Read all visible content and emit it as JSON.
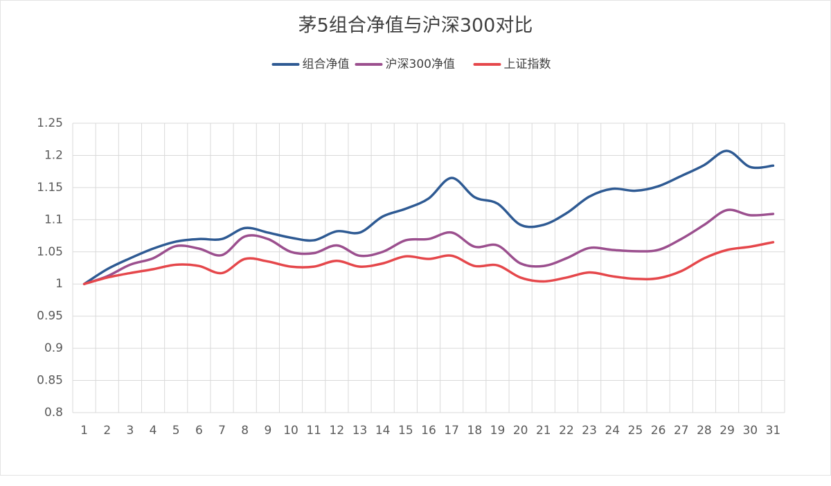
{
  "chart_data": {
    "type": "line",
    "title": "茅5组合净值与沪深300对比",
    "categories": [
      "1",
      "2",
      "3",
      "4",
      "5",
      "6",
      "7",
      "8",
      "9",
      "10",
      "11",
      "12",
      "13",
      "14",
      "15",
      "16",
      "17",
      "18",
      "19",
      "20",
      "21",
      "22",
      "23",
      "24",
      "25",
      "26",
      "27",
      "28",
      "29",
      "30",
      "31"
    ],
    "series": [
      {
        "name": "组合净值",
        "color": "#2e5a93",
        "values": [
          1.0,
          1.023,
          1.04,
          1.055,
          1.066,
          1.07,
          1.07,
          1.087,
          1.08,
          1.072,
          1.068,
          1.082,
          1.08,
          1.105,
          1.117,
          1.133,
          1.165,
          1.135,
          1.125,
          1.092,
          1.092,
          1.11,
          1.136,
          1.148,
          1.145,
          1.152,
          1.168,
          1.185,
          1.207,
          1.182,
          1.184
        ]
      },
      {
        "name": "沪深300净值",
        "color": "#9b4f8e",
        "values": [
          1.0,
          1.012,
          1.03,
          1.04,
          1.059,
          1.055,
          1.045,
          1.074,
          1.07,
          1.05,
          1.048,
          1.06,
          1.044,
          1.05,
          1.068,
          1.07,
          1.08,
          1.058,
          1.06,
          1.032,
          1.028,
          1.04,
          1.056,
          1.053,
          1.051,
          1.053,
          1.07,
          1.092,
          1.115,
          1.107,
          1.109
        ]
      },
      {
        "name": "上证指数",
        "color": "#e5474b",
        "values": [
          1.0,
          1.01,
          1.017,
          1.023,
          1.03,
          1.028,
          1.017,
          1.039,
          1.035,
          1.027,
          1.027,
          1.036,
          1.027,
          1.032,
          1.043,
          1.039,
          1.044,
          1.028,
          1.029,
          1.01,
          1.004,
          1.01,
          1.018,
          1.012,
          1.008,
          1.009,
          1.02,
          1.04,
          1.053,
          1.058,
          1.065
        ]
      }
    ],
    "ylim": [
      0.8,
      1.25
    ],
    "yticks": [
      0.8,
      0.85,
      0.9,
      0.95,
      1,
      1.05,
      1.1,
      1.15,
      1.2,
      1.25
    ],
    "grid": true,
    "legend": "top"
  }
}
